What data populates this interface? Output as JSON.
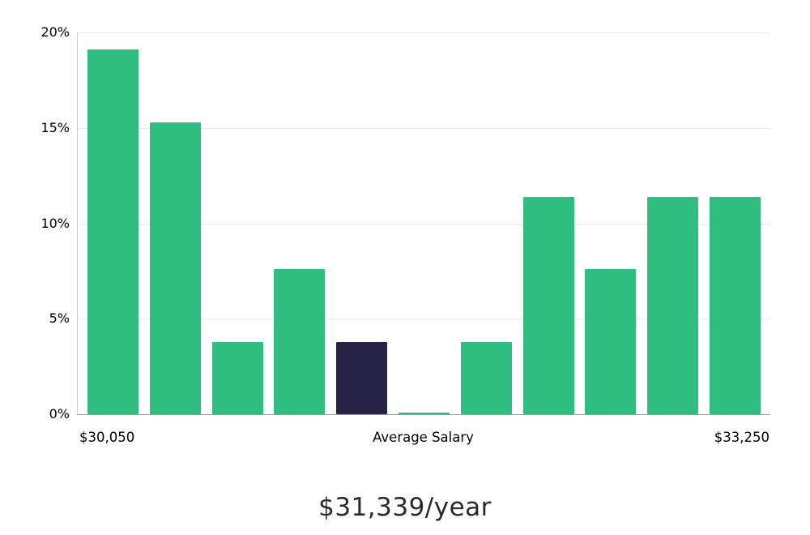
{
  "chart_data": {
    "type": "bar",
    "values": [
      19.1,
      15.3,
      3.8,
      7.6,
      3.8,
      0.1,
      3.8,
      11.4,
      7.6,
      11.4,
      11.4
    ],
    "highlight_index": 4,
    "ylim": [
      0,
      20
    ],
    "yticks": [
      0,
      5,
      10,
      15,
      20
    ],
    "ytick_labels": [
      "0%",
      "5%",
      "10%",
      "15%",
      "20%"
    ],
    "xtick_labels": {
      "left": "$30,050",
      "center": "Average Salary",
      "right": "$33,250"
    },
    "grid": true,
    "legend": "none",
    "bar_color": "#2fbd80",
    "highlight_color": "#262347"
  },
  "footer": {
    "average_salary": "$31,339/year"
  }
}
